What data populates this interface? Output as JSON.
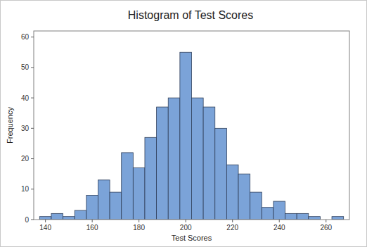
{
  "chart_data": {
    "type": "histogram",
    "title": "Histogram of Test Scores",
    "x_label": "Test Scores",
    "y_label": "Frequency",
    "bins": [
      137.5,
      142.5,
      147.5,
      152.5,
      157.5,
      162.5,
      167.5,
      172.5,
      177.5,
      182.5,
      187.5,
      192.5,
      197.5,
      202.5,
      207.5,
      212.5,
      217.5,
      222.5,
      227.5,
      232.5,
      237.5,
      242.5,
      247.5,
      252.5,
      257.5,
      262.5,
      267.5
    ],
    "values": [
      1,
      2,
      1,
      3,
      8,
      13,
      9,
      22,
      17,
      27,
      37,
      40,
      55,
      40,
      37,
      30,
      18,
      15,
      9,
      4,
      6,
      2,
      2,
      1,
      0,
      1
    ],
    "color": "#7ba3d8",
    "xlim": [
      135,
      270
    ],
    "xticks": [
      140,
      160,
      180,
      200,
      220,
      240,
      260
    ],
    "ylim": [
      0,
      62
    ],
    "yticks": [
      0,
      10,
      20,
      30,
      40,
      50,
      60
    ],
    "grid": false
  }
}
